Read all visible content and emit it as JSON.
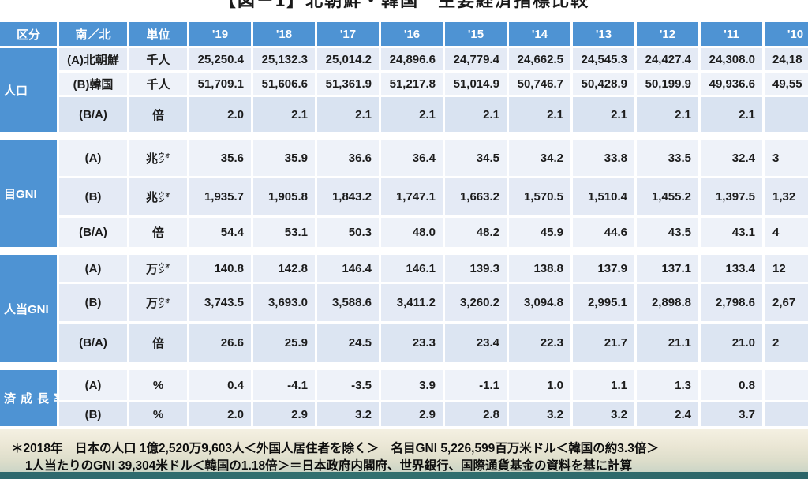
{
  "title": "【図－1】北朝鮮・韓国　主要経済指標比較",
  "colors": {
    "header_blue": "#4e93d3",
    "row_light": "#eef2f9",
    "row_medium": "#e4eaf5",
    "row_dark": "#d9e3f1",
    "bottom_strip_teal": "#2e6a6e"
  },
  "table": {
    "headers": {
      "category": "区分",
      "side": "南／北",
      "unit": "単位"
    },
    "years": [
      "'19",
      "'18",
      "'17",
      "'16",
      "'15",
      "'14",
      "'13",
      "'12",
      "'11",
      "'10"
    ],
    "sections": [
      {
        "label": "人口",
        "rows": [
          {
            "side": "(A)北朝鮮",
            "unit": "千人",
            "values": [
              "25,250.4",
              "25,132.3",
              "25,014.2",
              "24,896.6",
              "24,779.4",
              "24,662.5",
              "24,545.3",
              "24,427.4",
              "24,308.0",
              "24,18"
            ]
          },
          {
            "side": "(B)韓国",
            "unit": "千人",
            "values": [
              "51,709.1",
              "51,606.6",
              "51,361.9",
              "51,217.8",
              "51,014.9",
              "50,746.7",
              "50,428.9",
              "50,199.9",
              "49,936.6",
              "49,55"
            ]
          },
          {
            "side": "(B/A)",
            "unit": "倍",
            "values": [
              "2.0",
              "2.1",
              "2.1",
              "2.1",
              "2.1",
              "2.1",
              "2.1",
              "2.1",
              "2.1",
              ""
            ]
          }
        ]
      },
      {
        "label": "目GNI",
        "rows": [
          {
            "side": "(A)",
            "unit": {
              "main": "兆",
              "stack": [
                "ウォ",
                "ン"
              ]
            },
            "values": [
              "35.6",
              "35.9",
              "36.6",
              "36.4",
              "34.5",
              "34.2",
              "33.8",
              "33.5",
              "32.4",
              "3"
            ]
          },
          {
            "side": "(B)",
            "unit": {
              "main": "兆",
              "stack": [
                "ウォ",
                "ン"
              ]
            },
            "values": [
              "1,935.7",
              "1,905.8",
              "1,843.2",
              "1,747.1",
              "1,663.2",
              "1,570.5",
              "1,510.4",
              "1,455.2",
              "1,397.5",
              "1,32"
            ]
          },
          {
            "side": "(B/A)",
            "unit": "倍",
            "values": [
              "54.4",
              "53.1",
              "50.3",
              "48.0",
              "48.2",
              "45.9",
              "44.6",
              "43.5",
              "43.1",
              "4"
            ]
          }
        ]
      },
      {
        "label": "人当GNI",
        "rows": [
          {
            "side": "(A)",
            "unit": {
              "main": "万",
              "stack": [
                "ウォ",
                "ン"
              ]
            },
            "values": [
              "140.8",
              "142.8",
              "146.4",
              "146.1",
              "139.3",
              "138.8",
              "137.9",
              "137.1",
              "133.4",
              "12"
            ]
          },
          {
            "side": "(B)",
            "unit": {
              "main": "万",
              "stack": [
                "ウォ",
                "ン"
              ]
            },
            "values": [
              "3,743.5",
              "3,693.0",
              "3,588.6",
              "3,411.2",
              "3,260.2",
              "3,094.8",
              "2,995.1",
              "2,898.8",
              "2,798.6",
              "2,67"
            ]
          },
          {
            "side": "(B/A)",
            "unit": "倍",
            "values": [
              "26.6",
              "25.9",
              "24.5",
              "23.3",
              "23.4",
              "22.3",
              "21.7",
              "21.1",
              "21.0",
              "2"
            ]
          }
        ]
      },
      {
        "label": "済成長率",
        "rows": [
          {
            "side": "(A)",
            "unit": "%",
            "values": [
              "0.4",
              "-4.1",
              "-3.5",
              "3.9",
              "-1.1",
              "1.0",
              "1.1",
              "1.3",
              "0.8",
              ""
            ]
          },
          {
            "side": "(B)",
            "unit": "%",
            "values": [
              "2.0",
              "2.9",
              "3.2",
              "2.9",
              "2.8",
              "3.2",
              "3.2",
              "2.4",
              "3.7",
              ""
            ]
          }
        ]
      }
    ]
  },
  "footnote": {
    "line1": "＊2018年　日本の人口 1億2,520万9,603人＜外国人居住者を除く＞　名目GNI 5,226,599百万米ドル＜韓国の約3.3倍＞",
    "line2": "1人当たりのGNI 39,304米ドル＜韓国の1.18倍＞＝日本政府内閣府、世界銀行、国際通貨基金の資料を基に計算"
  }
}
